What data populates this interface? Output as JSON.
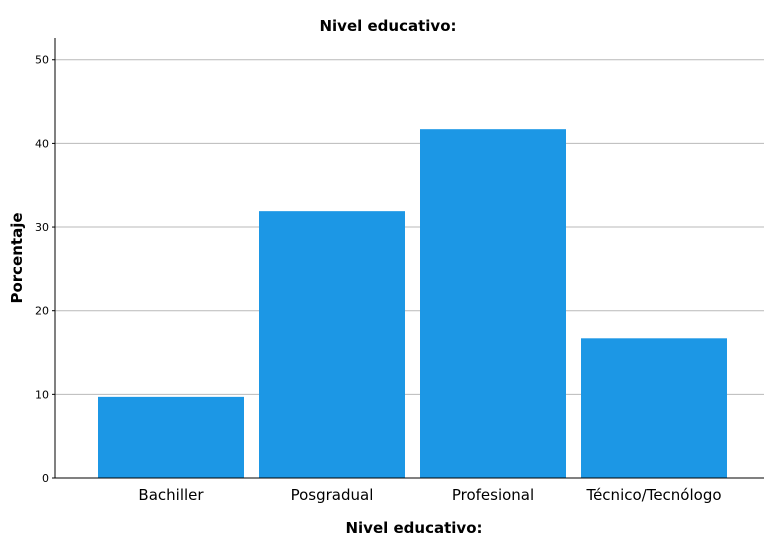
{
  "chart_data": {
    "type": "bar",
    "title": "Nivel educativo:",
    "xlabel": "Nivel educativo:",
    "ylabel": "Porcentaje",
    "categories": [
      "Bachiller",
      "Posgradual",
      "Profesional",
      "Técnico/Tecnólogo"
    ],
    "values": [
      9.7,
      31.9,
      41.7,
      16.7
    ],
    "ylim": [
      0,
      52.6
    ],
    "yticks": [
      "0",
      "10",
      "20",
      "30",
      "40",
      "50"
    ],
    "ytick_values": [
      0,
      10,
      20,
      30,
      40,
      50
    ],
    "grid": true,
    "bar_color": "#1c97e5"
  }
}
